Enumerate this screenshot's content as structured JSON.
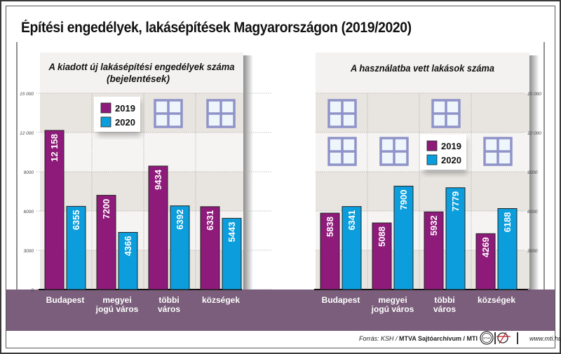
{
  "title": "Építési engedélyek, lakásépítések Magyarországon (2019/2020)",
  "colors": {
    "y2019": "#8e1b7a",
    "y2020": "#0c9ddc",
    "band": "#7a5e7b",
    "grid_dark": "#e8e5e0",
    "grid_light": "#f6f4f2",
    "window": "#8f93c8",
    "window_fill": "#eef6fc"
  },
  "icons": {
    "window": "window-icon",
    "mtva_logo": "mtva-logo-icon",
    "mti_logo": "mti-logo-icon"
  },
  "chart_data": [
    {
      "type": "bar",
      "title": "A kiadott új lakásépítési engedélyek száma",
      "subtitle": "(bejelentések)",
      "categories": [
        "Budapest",
        "megyei\njogú város",
        "többi\nváros",
        "községek"
      ],
      "series": [
        {
          "name": "2019",
          "values": [
            12158,
            7200,
            9434,
            6331
          ],
          "labels": [
            "12 158",
            "7200",
            "9434",
            "6331"
          ]
        },
        {
          "name": "2020",
          "values": [
            6355,
            4366,
            6392,
            5443
          ],
          "labels": [
            "6355",
            "4366",
            "6392",
            "5443"
          ]
        }
      ],
      "yticks": [
        "0",
        "3000",
        "6000",
        "9000",
        "12 000",
        "15 000"
      ],
      "ylim": [
        0,
        15000
      ],
      "axis_side": "left",
      "legend": {
        "position": "top-left",
        "entries": [
          "2019",
          "2020"
        ]
      },
      "grid": true
    },
    {
      "type": "bar",
      "title": "A használatba vett lakások száma",
      "subtitle": "",
      "categories": [
        "Budapest",
        "megyei\njogú város",
        "többi\nváros",
        "községek"
      ],
      "series": [
        {
          "name": "2019",
          "values": [
            5838,
            5088,
            5932,
            4269
          ],
          "labels": [
            "5838",
            "5088",
            "5932",
            "4269"
          ]
        },
        {
          "name": "2020",
          "values": [
            6341,
            7900,
            7779,
            6188
          ],
          "labels": [
            "6341",
            "7900",
            "7779",
            "6188"
          ]
        }
      ],
      "yticks": [
        "0",
        "3000",
        "6000",
        "9000",
        "12 000",
        "15 000"
      ],
      "ylim": [
        0,
        15000
      ],
      "axis_side": "right",
      "legend": {
        "position": "top-right",
        "entries": [
          "2019",
          "2020"
        ]
      },
      "grid": true
    }
  ],
  "footer": {
    "source_prefix": "Forrás: KSH / ",
    "source_bold": "MTVA Sajtóarchívum / MTI",
    "separator": "|",
    "mtva_logo_text": "MTVA",
    "url": "www.mti.hu"
  }
}
